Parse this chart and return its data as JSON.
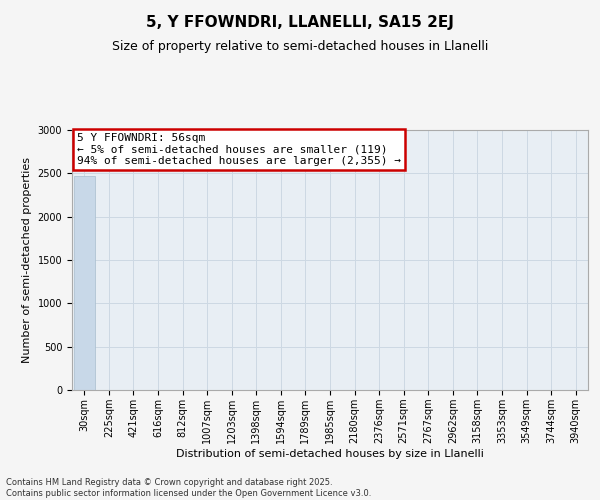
{
  "title": "5, Y FFOWNDRI, LLANELLI, SA15 2EJ",
  "subtitle": "Size of property relative to semi-detached houses in Llanelli",
  "xlabel": "Distribution of semi-detached houses by size in Llanelli",
  "ylabel": "Number of semi-detached properties",
  "categories": [
    "30sqm",
    "225sqm",
    "421sqm",
    "616sqm",
    "812sqm",
    "1007sqm",
    "1203sqm",
    "1398sqm",
    "1594sqm",
    "1789sqm",
    "1985sqm",
    "2180sqm",
    "2376sqm",
    "2571sqm",
    "2767sqm",
    "2962sqm",
    "3158sqm",
    "3353sqm",
    "3549sqm",
    "3744sqm",
    "3940sqm"
  ],
  "values": [
    2474,
    0,
    0,
    0,
    0,
    0,
    0,
    0,
    0,
    0,
    0,
    0,
    0,
    0,
    0,
    0,
    0,
    0,
    0,
    0,
    0
  ],
  "bar_color": "#c8d8e8",
  "bar_edge_color": "#a8bece",
  "property_size": "56sqm",
  "property_name": "5 Y FFOWNDRI",
  "pct_smaller": 5,
  "count_smaller": 119,
  "pct_larger": 94,
  "count_larger": "2,355",
  "annotation_box_facecolor": "#ffffff",
  "annotation_box_edgecolor": "#cc0000",
  "ylim": [
    0,
    3000
  ],
  "yticks": [
    0,
    500,
    1000,
    1500,
    2000,
    2500,
    3000
  ],
  "grid_color": "#cdd8e3",
  "plot_bg_color": "#e8eef4",
  "fig_bg_color": "#f5f5f5",
  "title_fontsize": 11,
  "subtitle_fontsize": 9,
  "ylabel_fontsize": 8,
  "xlabel_fontsize": 8,
  "tick_fontsize": 7,
  "annotation_fontsize": 8,
  "footer_line1": "Contains HM Land Registry data © Crown copyright and database right 2025.",
  "footer_line2": "Contains public sector information licensed under the Open Government Licence v3.0.",
  "footer_fontsize": 6
}
